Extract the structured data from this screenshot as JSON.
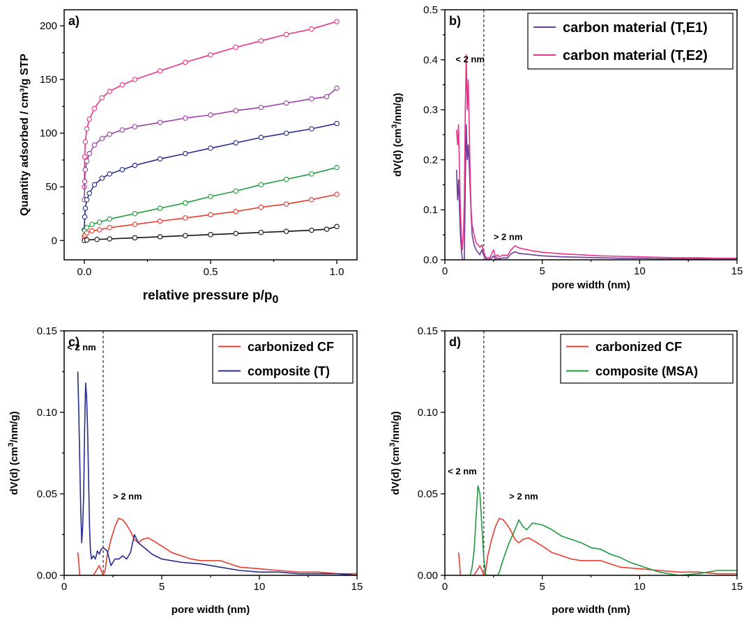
{
  "chart_data": [
    {
      "panel": "a)",
      "type": "line",
      "title": "",
      "xlabel": "relative pressure p/p",
      "xlabel_subscript": "0",
      "ylabel": "Quantity adsorbed / cm³/g STP",
      "xlim": [
        -0.08,
        1.08
      ],
      "ylim": [
        -18,
        215
      ],
      "xticks": [
        0.0,
        0.5,
        1.0
      ],
      "xtick_labels": [
        "0.0",
        "0.5",
        "1.0"
      ],
      "yticks": [
        0,
        50,
        100,
        150,
        200
      ],
      "ytick_labels": [
        "0",
        "50",
        "100",
        "150",
        "200"
      ],
      "grid": false,
      "series": [
        {
          "color": "#e8338a",
          "x": [
            0.0,
            0.0015,
            0.004,
            0.01,
            0.02,
            0.04,
            0.07,
            0.1,
            0.15,
            0.2,
            0.3,
            0.4,
            0.5,
            0.6,
            0.7,
            0.8,
            0.9,
            1.0
          ],
          "y": [
            50,
            78,
            92,
            104,
            113,
            123,
            133,
            139,
            145,
            150,
            158,
            166,
            173,
            180,
            186,
            192,
            197,
            204
          ]
        },
        {
          "color": "#9b3fa7",
          "x": [
            0.0,
            0.0015,
            0.004,
            0.01,
            0.02,
            0.04,
            0.07,
            0.1,
            0.15,
            0.2,
            0.3,
            0.4,
            0.5,
            0.6,
            0.7,
            0.8,
            0.9,
            0.96,
            1.0
          ],
          "y": [
            38,
            55,
            66,
            74,
            81,
            89,
            95,
            99,
            103,
            106,
            110,
            114,
            117,
            121,
            124,
            128,
            132,
            134,
            142
          ]
        },
        {
          "color": "#262b8c",
          "x": [
            0.0,
            0.0015,
            0.004,
            0.01,
            0.02,
            0.04,
            0.07,
            0.1,
            0.15,
            0.2,
            0.3,
            0.4,
            0.5,
            0.6,
            0.7,
            0.8,
            0.9,
            1.0
          ],
          "y": [
            10,
            22,
            30,
            38,
            44,
            52,
            58,
            62,
            66,
            70,
            76,
            81,
            86,
            91,
            96,
            100,
            104,
            109
          ]
        },
        {
          "color": "#1e9a3c",
          "x": [
            0.0,
            0.002,
            0.01,
            0.03,
            0.06,
            0.1,
            0.2,
            0.3,
            0.4,
            0.5,
            0.6,
            0.7,
            0.8,
            0.9,
            1.0
          ],
          "y": [
            4,
            9,
            12,
            15,
            17,
            20,
            25,
            30,
            35,
            41,
            46,
            52,
            57,
            62,
            68
          ]
        },
        {
          "color": "#e83a2e",
          "x": [
            0.0,
            0.003,
            0.01,
            0.03,
            0.06,
            0.1,
            0.2,
            0.3,
            0.4,
            0.5,
            0.6,
            0.7,
            0.8,
            0.9,
            1.0
          ],
          "y": [
            3,
            5,
            7,
            9,
            10,
            12,
            15,
            18,
            21,
            24,
            27,
            31,
            34,
            38,
            43
          ]
        },
        {
          "color": "#111111",
          "x": [
            0.0,
            0.01,
            0.05,
            0.1,
            0.2,
            0.3,
            0.4,
            0.5,
            0.6,
            0.7,
            0.8,
            0.9,
            0.96,
            1.0
          ],
          "y": [
            0,
            0.5,
            1,
            1.5,
            2.5,
            3.5,
            4.5,
            5.5,
            6.5,
            7.5,
            8.5,
            9.5,
            10.5,
            13
          ]
        }
      ]
    },
    {
      "panel": "b)",
      "type": "line",
      "title": "",
      "xlabel": "pore width (nm)",
      "ylabel": "dV(d) (cm",
      "ylabel_superscript": "3",
      "ylabel_tail": "/nm/g)",
      "xlim": [
        0,
        15
      ],
      "ylim": [
        0,
        0.5
      ],
      "xticks": [
        0,
        5,
        10,
        15
      ],
      "xtick_labels": [
        "0",
        "5",
        "10",
        "15"
      ],
      "yticks": [
        0.0,
        0.1,
        0.2,
        0.3,
        0.4,
        0.5
      ],
      "ytick_labels": [
        "0.0",
        "0.1",
        "0.2",
        "0.3",
        "0.4",
        "0.5"
      ],
      "grid": false,
      "divider_x": 2,
      "annotations": [
        {
          "text": "< 2 nm",
          "x": 0.55,
          "y": 0.395
        },
        {
          "text": "> 2 nm",
          "x": 2.5,
          "y": 0.04
        }
      ],
      "legend": {
        "position": "top-right"
      },
      "series": [
        {
          "name": "carbon material (T,E1)",
          "color": "#6a3d9a",
          "x": [
            0.6,
            0.65,
            0.7,
            0.75,
            0.8,
            0.85,
            0.9,
            0.95,
            1.0,
            1.05,
            1.1,
            1.15,
            1.2,
            1.25,
            1.3,
            1.35,
            1.4,
            1.5,
            1.6,
            1.7,
            1.8,
            1.9,
            2.0,
            2.1,
            2.3,
            2.5,
            2.6,
            2.7,
            2.8,
            3.0,
            3.2,
            3.4,
            3.6,
            3.8,
            4.0,
            4.5,
            5.0,
            6.0,
            7.0,
            8.0,
            9.0,
            10.0,
            11.0,
            12.0,
            13.0,
            14.0,
            15.0
          ],
          "y": [
            0.18,
            0.12,
            0.16,
            0.1,
            0.05,
            0.02,
            0.0,
            0.0,
            0.0,
            0.15,
            0.27,
            0.2,
            0.23,
            0.19,
            0.14,
            0.09,
            0.05,
            0.03,
            0.02,
            0.015,
            0.01,
            0.02,
            0.008,
            0.002,
            0.0,
            0.008,
            0.0,
            0.004,
            0.002,
            0.004,
            0.003,
            0.012,
            0.016,
            0.013,
            0.012,
            0.01,
            0.008,
            0.006,
            0.005,
            0.004,
            0.003,
            0.003,
            0.002,
            0.002,
            0.002,
            0.002,
            0.002
          ]
        },
        {
          "name": "carbon material (T,E2)",
          "color": "#e8338a",
          "x": [
            0.6,
            0.65,
            0.7,
            0.75,
            0.8,
            0.85,
            0.9,
            0.95,
            1.0,
            1.05,
            1.1,
            1.15,
            1.2,
            1.25,
            1.3,
            1.35,
            1.4,
            1.5,
            1.6,
            1.7,
            1.8,
            1.9,
            2.0,
            2.1,
            2.3,
            2.5,
            2.6,
            2.7,
            2.8,
            3.0,
            3.2,
            3.4,
            3.6,
            3.8,
            4.0,
            4.5,
            5.0,
            6.0,
            7.0,
            8.0,
            9.0,
            10.0,
            11.0,
            12.0,
            13.0,
            14.0,
            15.0
          ],
          "y": [
            0.26,
            0.23,
            0.27,
            0.18,
            0.1,
            0.05,
            0.02,
            0.05,
            0.12,
            0.3,
            0.41,
            0.3,
            0.36,
            0.27,
            0.17,
            0.1,
            0.07,
            0.05,
            0.035,
            0.03,
            0.025,
            0.03,
            0.015,
            0.005,
            0.003,
            0.02,
            0.005,
            0.01,
            0.006,
            0.01,
            0.008,
            0.02,
            0.028,
            0.024,
            0.022,
            0.018,
            0.015,
            0.012,
            0.01,
            0.008,
            0.007,
            0.006,
            0.005,
            0.004,
            0.004,
            0.003,
            0.003
          ]
        }
      ]
    },
    {
      "panel": "c)",
      "type": "line",
      "title": "",
      "xlabel": "pore width (nm)",
      "ylabel": "dV(d) (cm",
      "ylabel_superscript": "3",
      "ylabel_tail": "/nm/g)",
      "xlim": [
        0,
        15
      ],
      "ylim": [
        0,
        0.15
      ],
      "xticks": [
        0,
        5,
        10,
        15
      ],
      "xtick_labels": [
        "0",
        "5",
        "10",
        "15"
      ],
      "yticks": [
        0.0,
        0.05,
        0.1,
        0.15
      ],
      "ytick_labels": [
        "0.00",
        "0.05",
        "0.10",
        "0.15"
      ],
      "grid": false,
      "divider_x": 2,
      "annotations": [
        {
          "text": "< 2 nm",
          "x": 0.15,
          "y": 0.138
        },
        {
          "text": "> 2 nm",
          "x": 2.5,
          "y": 0.0465
        }
      ],
      "legend": {
        "position": "top-right"
      },
      "series": [
        {
          "name": "carbonized CF",
          "color": "#e83a2e",
          "x": [
            0.7,
            0.75,
            0.8,
            0.9,
            1.0,
            1.5,
            1.8,
            1.9,
            2.0,
            2.1,
            2.2,
            2.4,
            2.6,
            2.8,
            3.0,
            3.2,
            3.4,
            3.6,
            3.8,
            4.0,
            4.3,
            4.6,
            5.0,
            5.5,
            6.0,
            6.5,
            7.0,
            8.0,
            8.5,
            9.0,
            10.0,
            11.0,
            12.0,
            13.0,
            14.0,
            15.0
          ],
          "y": [
            0.014,
            0.008,
            0.0,
            0.0,
            0.0,
            0.0,
            0.006,
            0.003,
            0.0,
            0.003,
            0.012,
            0.022,
            0.03,
            0.035,
            0.034,
            0.031,
            0.027,
            0.022,
            0.02,
            0.022,
            0.023,
            0.021,
            0.018,
            0.014,
            0.012,
            0.01,
            0.009,
            0.009,
            0.007,
            0.005,
            0.004,
            0.003,
            0.002,
            0.002,
            0.001,
            0.001
          ]
        },
        {
          "name": "composite (T)",
          "color": "#262b8c",
          "x": [
            0.7,
            0.75,
            0.8,
            0.85,
            0.9,
            0.95,
            1.0,
            1.05,
            1.1,
            1.15,
            1.2,
            1.25,
            1.3,
            1.35,
            1.4,
            1.5,
            1.6,
            1.7,
            1.8,
            1.9,
            2.0,
            2.2,
            2.4,
            2.6,
            2.8,
            3.0,
            3.2,
            3.4,
            3.6,
            3.8,
            4.0,
            4.5,
            5.0,
            5.5,
            6.0,
            7.0,
            8.0,
            9.0,
            10.0,
            11.0,
            12.0,
            13.0,
            14.0,
            15.0
          ],
          "y": [
            0.125,
            0.1,
            0.07,
            0.04,
            0.02,
            0.03,
            0.05,
            0.09,
            0.118,
            0.11,
            0.09,
            0.06,
            0.03,
            0.015,
            0.01,
            0.012,
            0.01,
            0.015,
            0.013,
            0.016,
            0.017,
            0.015,
            0.006,
            0.01,
            0.01,
            0.012,
            0.01,
            0.014,
            0.025,
            0.02,
            0.018,
            0.013,
            0.01,
            0.009,
            0.008,
            0.007,
            0.005,
            0.003,
            0.002,
            0.002,
            0.001,
            0.001,
            0.001,
            0.0
          ]
        }
      ]
    },
    {
      "panel": "d)",
      "type": "line",
      "title": "",
      "xlabel": "pore width (nm)",
      "ylabel": "dV(d) (cm",
      "ylabel_superscript": "3",
      "ylabel_tail": "/nm/g)",
      "xlim": [
        0,
        15
      ],
      "ylim": [
        0,
        0.15
      ],
      "xticks": [
        0,
        5,
        10,
        15
      ],
      "xtick_labels": [
        "0",
        "5",
        "10",
        "15"
      ],
      "yticks": [
        0.0,
        0.05,
        0.1,
        0.15
      ],
      "ytick_labels": [
        "0.00",
        "0.05",
        "0.10",
        "0.15"
      ],
      "grid": false,
      "divider_x": 2,
      "annotations": [
        {
          "text": "< 2 nm",
          "x": 0.15,
          "y": 0.062
        },
        {
          "text": "> 2 nm",
          "x": 3.3,
          "y": 0.0465
        }
      ],
      "legend": {
        "position": "top-right"
      },
      "series": [
        {
          "name": "carbonized CF",
          "color": "#e83a2e",
          "x": [
            0.7,
            0.75,
            0.8,
            0.9,
            1.0,
            1.5,
            1.8,
            1.9,
            2.0,
            2.1,
            2.2,
            2.4,
            2.6,
            2.8,
            3.0,
            3.2,
            3.4,
            3.6,
            3.8,
            4.0,
            4.3,
            4.6,
            5.0,
            5.5,
            6.0,
            6.5,
            7.0,
            8.0,
            8.5,
            9.0,
            10.0,
            11.0,
            12.0,
            13.0,
            14.0,
            15.0
          ],
          "y": [
            0.014,
            0.008,
            0.0,
            0.0,
            0.0,
            0.0,
            0.006,
            0.003,
            0.0,
            0.003,
            0.012,
            0.022,
            0.03,
            0.035,
            0.034,
            0.031,
            0.027,
            0.022,
            0.02,
            0.022,
            0.023,
            0.021,
            0.018,
            0.014,
            0.012,
            0.01,
            0.009,
            0.009,
            0.007,
            0.005,
            0.004,
            0.003,
            0.002,
            0.002,
            0.001,
            0.001
          ]
        },
        {
          "name": "composite (MSA)",
          "color": "#1e9a3c",
          "x": [
            1.3,
            1.4,
            1.5,
            1.6,
            1.7,
            1.8,
            1.9,
            2.0,
            2.1,
            2.3,
            2.5,
            2.7,
            2.8,
            3.0,
            3.3,
            3.6,
            3.8,
            4.0,
            4.2,
            4.5,
            5.0,
            5.5,
            6.0,
            6.5,
            7.0,
            7.5,
            8.0,
            8.5,
            9.0,
            9.5,
            10.0,
            10.5,
            11.0,
            12.0,
            13.0,
            14.0,
            15.0
          ],
          "y": [
            0.0,
            0.005,
            0.015,
            0.035,
            0.055,
            0.05,
            0.03,
            0.01,
            0.0,
            0.0,
            0.0,
            0.0,
            0.002,
            0.01,
            0.02,
            0.028,
            0.034,
            0.03,
            0.028,
            0.032,
            0.031,
            0.028,
            0.024,
            0.022,
            0.02,
            0.017,
            0.016,
            0.013,
            0.011,
            0.008,
            0.006,
            0.004,
            0.002,
            0.0,
            0.001,
            0.003,
            0.003
          ]
        }
      ]
    }
  ]
}
